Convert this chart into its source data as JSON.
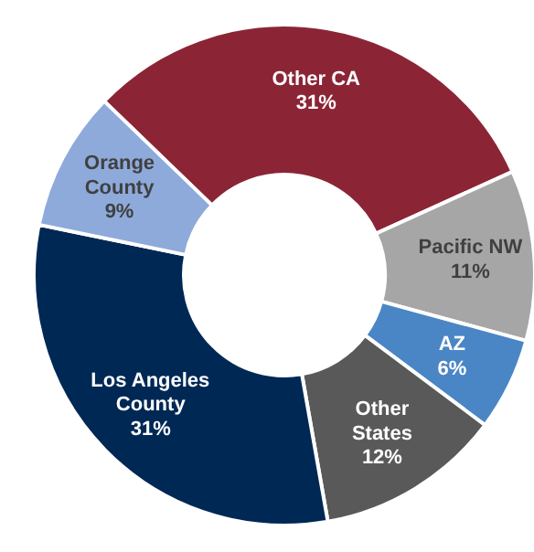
{
  "chart_data": {
    "type": "donut",
    "categories": [
      "Other CA",
      "Pacific NW",
      "AZ",
      "Other States",
      "Los Angeles County",
      "Orange County"
    ],
    "values": [
      31,
      11,
      6,
      12,
      31,
      9
    ],
    "value_labels": [
      "31%",
      "11%",
      "6%",
      "12%",
      "31%",
      "9%"
    ],
    "colors": [
      "#8b2535",
      "#a6a6a6",
      "#4a86c5",
      "#595959",
      "#002855",
      "#8eaadb"
    ]
  }
}
